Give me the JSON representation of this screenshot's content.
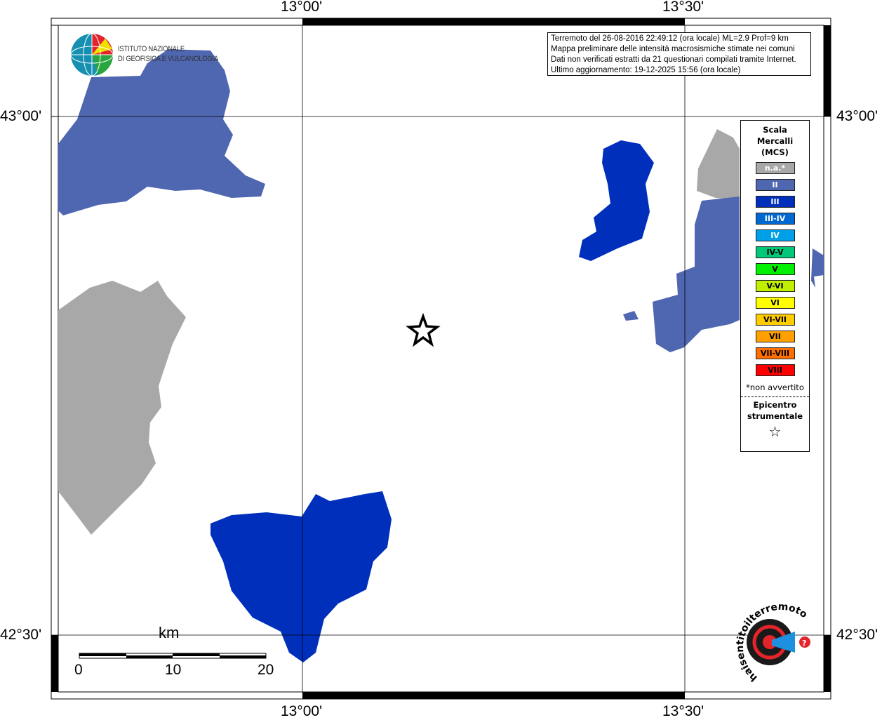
{
  "info_box": {
    "lines": [
      "Terremoto del 26-08-2016 22:49:12 (ora locale) ML=2.9 Prof=9 km",
      "Mappa preliminare delle intensità macrosismiche stimate nei comuni",
      "Dati non verificati estratti da 21 questionari compilati tramite Internet.",
      "Ultimo aggiornamento: 19-12-2025 15:56 (ora locale)"
    ]
  },
  "axes": {
    "lon_labels": [
      "13°00'",
      "13°30'"
    ],
    "lat_labels": [
      "43°00'",
      "42°30'"
    ]
  },
  "logos": {
    "ingv": [
      "ISTITUTO NAZIONALE",
      "DI GEOFISICA E VULCANOLOGIA"
    ],
    "hsit": "www.haisentitoilterremoto.it"
  },
  "legend": {
    "title": [
      "Scala",
      "Mercalli",
      "(MCS)"
    ],
    "classes": [
      {
        "label": "n.a.*",
        "color": "#a8a8a8",
        "text": "#ffffff"
      },
      {
        "label": "II",
        "color": "#4f66b0",
        "text": "#ffffff"
      },
      {
        "label": "III",
        "color": "#0030bb",
        "text": "#ffffff"
      },
      {
        "label": "III-IV",
        "color": "#0068d0",
        "text": "#ffffff"
      },
      {
        "label": "IV",
        "color": "#00a0e8",
        "text": "#ffffff"
      },
      {
        "label": "IV-V",
        "color": "#00c878",
        "text": "#000000"
      },
      {
        "label": "V",
        "color": "#00f000",
        "text": "#000000"
      },
      {
        "label": "V-VI",
        "color": "#c0f000",
        "text": "#000000"
      },
      {
        "label": "VI",
        "color": "#ffff00",
        "text": "#000000"
      },
      {
        "label": "VI-VII",
        "color": "#ffcc00",
        "text": "#000000"
      },
      {
        "label": "VII",
        "color": "#ffa000",
        "text": "#000000"
      },
      {
        "label": "VII-VIII",
        "color": "#ff7000",
        "text": "#000000"
      },
      {
        "label": "VIII",
        "color": "#ff0000",
        "text": "#000000"
      }
    ],
    "footnote": "*non avvertito",
    "epicenter_label": [
      "Epicentro",
      "strumentale"
    ],
    "epicenter_symbol": "☆"
  },
  "scale_bar": {
    "unit": "km",
    "ticks": [
      "0",
      "10",
      "20"
    ]
  }
}
